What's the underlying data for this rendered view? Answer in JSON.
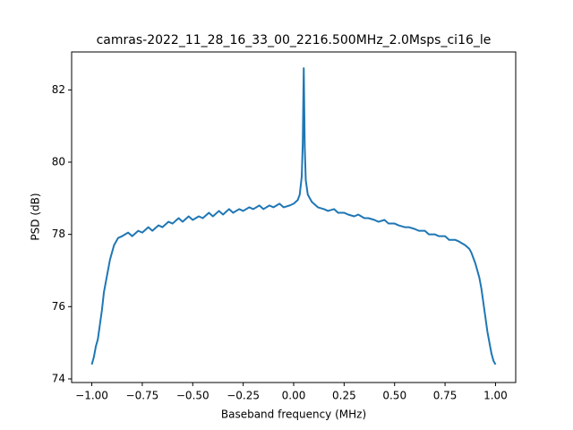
{
  "chart_data": {
    "type": "line",
    "title": "camras-2022_11_28_16_33_00_2216.500MHz_2.0Msps_ci16_le",
    "x_label": "Baseband frequency (MHz)",
    "y_label": "PSD (dB)",
    "x": [
      -1.0,
      -0.99,
      -0.98,
      -0.97,
      -0.96,
      -0.95,
      -0.94,
      -0.93,
      -0.92,
      -0.91,
      -0.9,
      -0.89,
      -0.88,
      -0.87,
      -0.85,
      -0.82,
      -0.8,
      -0.77,
      -0.75,
      -0.72,
      -0.7,
      -0.67,
      -0.65,
      -0.62,
      -0.6,
      -0.57,
      -0.55,
      -0.52,
      -0.5,
      -0.47,
      -0.45,
      -0.42,
      -0.4,
      -0.37,
      -0.35,
      -0.32,
      -0.3,
      -0.27,
      -0.25,
      -0.22,
      -0.2,
      -0.17,
      -0.15,
      -0.12,
      -0.1,
      -0.07,
      -0.05,
      -0.02,
      0.0,
      0.02,
      0.03,
      0.04,
      0.045,
      0.05,
      0.055,
      0.06,
      0.07,
      0.09,
      0.12,
      0.15,
      0.17,
      0.2,
      0.22,
      0.25,
      0.27,
      0.3,
      0.32,
      0.35,
      0.37,
      0.4,
      0.42,
      0.45,
      0.47,
      0.5,
      0.52,
      0.55,
      0.57,
      0.6,
      0.62,
      0.65,
      0.67,
      0.7,
      0.72,
      0.75,
      0.77,
      0.8,
      0.82,
      0.85,
      0.87,
      0.88,
      0.89,
      0.9,
      0.91,
      0.92,
      0.93,
      0.94,
      0.95,
      0.96,
      0.97,
      0.98,
      0.99,
      1.0
    ],
    "series": [
      {
        "name": "PSD",
        "color": "#1f77b4",
        "values": [
          74.4,
          74.6,
          74.9,
          75.1,
          75.5,
          75.9,
          76.4,
          76.7,
          77.0,
          77.3,
          77.5,
          77.7,
          77.8,
          77.9,
          77.95,
          78.05,
          77.95,
          78.1,
          78.05,
          78.2,
          78.1,
          78.25,
          78.2,
          78.35,
          78.3,
          78.45,
          78.35,
          78.5,
          78.4,
          78.5,
          78.45,
          78.6,
          78.5,
          78.65,
          78.55,
          78.7,
          78.6,
          78.7,
          78.65,
          78.75,
          78.7,
          78.8,
          78.7,
          78.8,
          78.75,
          78.85,
          78.75,
          78.8,
          78.85,
          78.95,
          79.1,
          79.6,
          80.5,
          82.6,
          80.4,
          79.5,
          79.1,
          78.9,
          78.75,
          78.7,
          78.65,
          78.7,
          78.6,
          78.6,
          78.55,
          78.5,
          78.55,
          78.45,
          78.45,
          78.4,
          78.35,
          78.4,
          78.3,
          78.3,
          78.25,
          78.2,
          78.2,
          78.15,
          78.1,
          78.1,
          78.0,
          78.0,
          77.95,
          77.95,
          77.85,
          77.85,
          77.8,
          77.7,
          77.6,
          77.5,
          77.35,
          77.2,
          77.0,
          76.8,
          76.5,
          76.1,
          75.7,
          75.3,
          75.0,
          74.7,
          74.5,
          74.4
        ]
      }
    ],
    "xlim": [
      -1.1,
      1.1
    ],
    "ylim": [
      73.9,
      83.05
    ],
    "xticks": [
      {
        "value": -1.0,
        "label": "−1.00"
      },
      {
        "value": -0.75,
        "label": "−0.75"
      },
      {
        "value": -0.5,
        "label": "−0.50"
      },
      {
        "value": -0.25,
        "label": "−0.25"
      },
      {
        "value": 0,
        "label": "0.00"
      },
      {
        "value": 0.25,
        "label": "0.25"
      },
      {
        "value": 0.5,
        "label": "0.50"
      },
      {
        "value": 0.75,
        "label": "0.75"
      },
      {
        "value": 1.0,
        "label": "1.00"
      }
    ],
    "yticks": [
      74,
      76,
      78,
      80,
      82
    ],
    "grid": false
  }
}
